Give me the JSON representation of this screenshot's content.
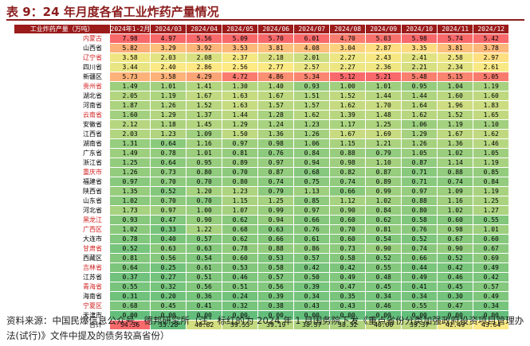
{
  "title": "表 9：24 年月度各省工业炸药产量情况",
  "table": {
    "header": [
      "工业炸药产量（万吨）",
      "2024年1-2月",
      "2024/03",
      "2024/04",
      "2024/05",
      "2024/06",
      "2024/07",
      "2024/08",
      "2024/09",
      "2024/10",
      "2024/11",
      "2024/12"
    ],
    "rows": [
      {
        "name": "内蒙古",
        "red": true,
        "values": [
          "7.98",
          "4.97",
          "5.56",
          "5.09",
          "5.70",
          "6.01",
          "4.70",
          "5.03",
          "5.98",
          "5.74",
          "5.42"
        ]
      },
      {
        "name": "山西省",
        "red": false,
        "values": [
          "5.82",
          "3.29",
          "3.92",
          "3.53",
          "3.81",
          "4.08",
          "3.04",
          "2.87",
          "3.35",
          "3.81",
          "3.78"
        ]
      },
      {
        "name": "辽宁省",
        "red": true,
        "values": [
          "3.58",
          "2.03",
          "2.08",
          "2.37",
          "2.18",
          "2.01",
          "2.27",
          "2.43",
          "2.41",
          "2.58",
          "2.97"
        ]
      },
      {
        "name": "四川省",
        "red": false,
        "values": [
          "3.44",
          "2.40",
          "2.86",
          "2.56",
          "2.77",
          "2.57",
          "2.27",
          "2.36",
          "2.21",
          "2.34",
          "2.61"
        ]
      },
      {
        "name": "新疆区",
        "red": false,
        "values": [
          "5.73",
          "3.58",
          "4.29",
          "4.72",
          "4.86",
          "5.34",
          "5.12",
          "5.21",
          "5.48",
          "5.15",
          "5.05"
        ]
      },
      {
        "name": "贵州省",
        "red": true,
        "values": [
          "1.49",
          "1.01",
          "1.41",
          "1.30",
          "1.40",
          "0.93",
          "1.00",
          "1.01",
          "0.95",
          "1.04",
          "1.19"
        ]
      },
      {
        "name": "湖北省",
        "red": false,
        "values": [
          "2.05",
          "1.19",
          "1.67",
          "1.63",
          "1.67",
          "1.51",
          "1.52",
          "1.44",
          "1.44",
          "1.60",
          "1.60"
        ]
      },
      {
        "name": "河南省",
        "red": false,
        "values": [
          "1.87",
          "1.26",
          "1.52",
          "1.63",
          "1.57",
          "1.57",
          "1.62",
          "1.70",
          "1.64",
          "1.96",
          "1.83"
        ]
      },
      {
        "name": "云南省",
        "red": true,
        "values": [
          "1.60",
          "1.29",
          "1.37",
          "1.44",
          "1.28",
          "1.62",
          "1.39",
          "1.48",
          "1.62",
          "1.52",
          "1.65"
        ]
      },
      {
        "name": "安徽省",
        "red": false,
        "values": [
          "2.12",
          "1.18",
          "1.45",
          "1.29",
          "1.24",
          "1.23",
          "1.17",
          "1.25",
          "1.06",
          "1.19",
          "1.10"
        ]
      },
      {
        "name": "江西省",
        "red": false,
        "values": [
          "2.03",
          "1.23",
          "1.09",
          "1.50",
          "1.36",
          "1.26",
          "1.67",
          "1.69",
          "1.29",
          "1.67",
          "1.62"
        ]
      },
      {
        "name": "湖南省",
        "red": false,
        "values": [
          "1.31",
          "0.64",
          "1.16",
          "0.97",
          "0.98",
          "1.06",
          "1.15",
          "1.21",
          "1.26",
          "1.36",
          "1.46"
        ]
      },
      {
        "name": "广东省",
        "red": false,
        "values": [
          "1.49",
          "0.78",
          "1.01",
          "0.81",
          "0.76",
          "0.84",
          "0.88",
          "0.79",
          "1.05",
          "1.02",
          "1.05"
        ]
      },
      {
        "name": "浙江省",
        "red": false,
        "values": [
          "1.25",
          "0.64",
          "0.95",
          "0.89",
          "0.97",
          "0.94",
          "0.98",
          "1.10",
          "0.87",
          "1.14",
          "1.19"
        ]
      },
      {
        "name": "重庆市",
        "red": true,
        "values": [
          "1.26",
          "0.73",
          "0.80",
          "0.70",
          "0.87",
          "0.68",
          "0.82",
          "0.87",
          "0.71",
          "0.88",
          "0.85"
        ]
      },
      {
        "name": "福建省",
        "red": false,
        "values": [
          "0.97",
          "0.70",
          "0.70",
          "0.80",
          "0.74",
          "0.75",
          "0.74",
          "0.89",
          "0.71",
          "0.74",
          "0.84"
        ]
      },
      {
        "name": "陕西省",
        "red": false,
        "values": [
          "1.35",
          "0.52",
          "1.20",
          "1.23",
          "0.79",
          "1.13",
          "0.66",
          "0.99",
          "0.97",
          "1.09",
          "1.19"
        ]
      },
      {
        "name": "山东省",
        "red": false,
        "values": [
          "1.02",
          "0.70",
          "0.70",
          "1.15",
          "1.25",
          "0.85",
          "1.12",
          "1.02",
          "0.88",
          "1.16",
          "1.25"
        ]
      },
      {
        "name": "河北省",
        "red": false,
        "values": [
          "1.73",
          "0.97",
          "1.00",
          "1.07",
          "0.99",
          "0.97",
          "0.90",
          "0.84",
          "0.80",
          "1.02",
          "1.27"
        ]
      },
      {
        "name": "黑龙江",
        "red": true,
        "values": [
          "0.93",
          "0.47",
          "0.90",
          "0.62",
          "0.94",
          "0.66",
          "0.60",
          "0.62",
          "0.58",
          "0.60",
          "0.55"
        ]
      },
      {
        "name": "广西区",
        "red": true,
        "values": [
          "1.02",
          "0.33",
          "1.22",
          "0.68",
          "0.63",
          "0.76",
          "0.70",
          "0.81",
          "0.76",
          "0.98",
          "1.01"
        ]
      },
      {
        "name": "大连市",
        "red": false,
        "values": [
          "0.78",
          "0.40",
          "0.57",
          "0.62",
          "0.66",
          "0.61",
          "0.60",
          "0.54",
          "0.52",
          "0.67",
          "0.60"
        ]
      },
      {
        "name": "甘肃省",
        "red": true,
        "values": [
          "0.52",
          "0.63",
          "0.63",
          "0.78",
          "0.88",
          "0.86",
          "0.73",
          "0.90",
          "0.74",
          "0.90",
          "0.67"
        ]
      },
      {
        "name": "西藏区",
        "red": false,
        "values": [
          "0.81",
          "0.56",
          "0.54",
          "0.60",
          "0.53",
          "0.57",
          "0.58",
          "0.52",
          "0.66",
          "0.52",
          "0.69"
        ]
      },
      {
        "name": "吉林省",
        "red": true,
        "values": [
          "0.64",
          "0.25",
          "0.61",
          "0.53",
          "0.58",
          "0.42",
          "0.42",
          "0.55",
          "0.44",
          "0.42",
          "0.49"
        ]
      },
      {
        "name": "江苏省",
        "red": false,
        "values": [
          "0.37",
          "0.27",
          "0.51",
          "0.46",
          "0.57",
          "0.50",
          "0.49",
          "0.48",
          "0.49",
          "0.46",
          "0.42"
        ]
      },
      {
        "name": "青海省",
        "red": true,
        "values": [
          "0.55",
          "0.32",
          "0.56",
          "0.51",
          "0.56",
          "0.39",
          "0.47",
          "0.45",
          "0.41",
          "0.45",
          "0.57"
        ]
      },
      {
        "name": "海南省",
        "red": false,
        "values": [
          "0.31",
          "0.20",
          "0.36",
          "0.24",
          "0.39",
          "0.34",
          "0.35",
          "0.34",
          "0.34",
          "0.30",
          "0.49"
        ]
      },
      {
        "name": "宁夏区",
        "red": true,
        "values": [
          "0.68",
          "0.45",
          "0.41",
          "0.32",
          "0.38",
          "0.43",
          "0.43",
          "0.46",
          "0.55",
          "0.47",
          "0.34"
        ]
      },
      {
        "name": "天津市",
        "red": false,
        "values": [
          "0.00",
          "0.00",
          "0.00",
          "0.00",
          "0.00",
          "0.00",
          "0.00",
          "0.00",
          "0.00",
          "0.00",
          "0.00"
        ]
      }
    ],
    "total": {
      "name": "合计",
      "values": [
        "54.36",
        "33.28",
        "40.82",
        "39.53",
        "39.19",
        "38.37",
        "38.32",
        "40.00",
        "39.37",
        "42.49",
        "43.64"
      ]
    }
  },
  "source": "资料来源：中国民爆信息公众号、德邦研究所（注：标红的为 2024 年 1 月国务院下发《重点省份分类加强政府投资项目管理办法(试行)》文件中提及的债务较高省份）"
}
